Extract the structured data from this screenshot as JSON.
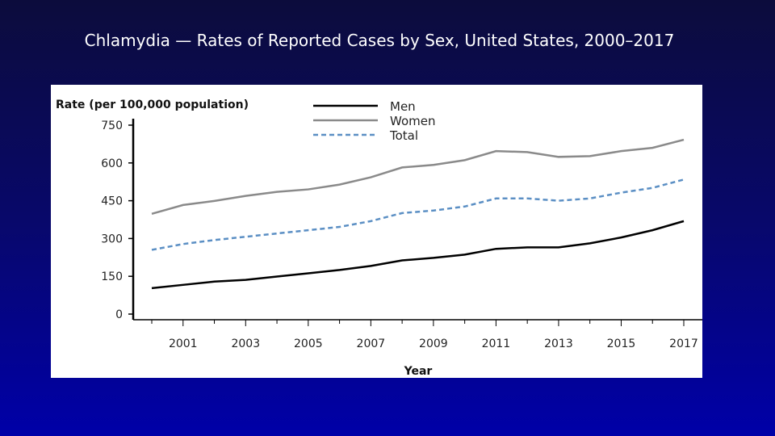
{
  "slide_title": "Chlamydia — Rates of Reported Cases by Sex, United States, 2000–2017",
  "chart_data": {
    "type": "line",
    "title": "",
    "ylabel": "Rate (per 100,000 population)",
    "xlabel": "Year",
    "ylim": [
      0,
      750
    ],
    "yticks": [
      0,
      150,
      300,
      450,
      600,
      750
    ],
    "xlim": [
      2000,
      2017
    ],
    "xtick_labels": [
      2001,
      2003,
      2005,
      2007,
      2009,
      2011,
      2013,
      2015,
      2017
    ],
    "legend_position": "top-right",
    "grid": false,
    "x": [
      2000,
      2001,
      2002,
      2003,
      2004,
      2005,
      2006,
      2007,
      2008,
      2009,
      2010,
      2011,
      2012,
      2013,
      2014,
      2015,
      2016,
      2017
    ],
    "series": [
      {
        "name": "Men",
        "color": "#000000",
        "style": "solid",
        "values": [
          103,
          116,
          129,
          136,
          149,
          162,
          175,
          191,
          213,
          223,
          236,
          259,
          265,
          265,
          281,
          304,
          333,
          369
        ]
      },
      {
        "name": "Women",
        "color": "#8a8a8a",
        "style": "solid",
        "values": [
          398,
          433,
          449,
          469,
          485,
          495,
          514,
          543,
          582,
          592,
          611,
          647,
          643,
          624,
          627,
          647,
          660,
          692
        ]
      },
      {
        "name": "Total",
        "color": "#5b8fc4",
        "style": "dashed",
        "values": [
          255,
          278,
          294,
          307,
          320,
          333,
          346,
          369,
          401,
          411,
          427,
          459,
          459,
          450,
          459,
          482,
          501,
          534
        ]
      }
    ]
  }
}
